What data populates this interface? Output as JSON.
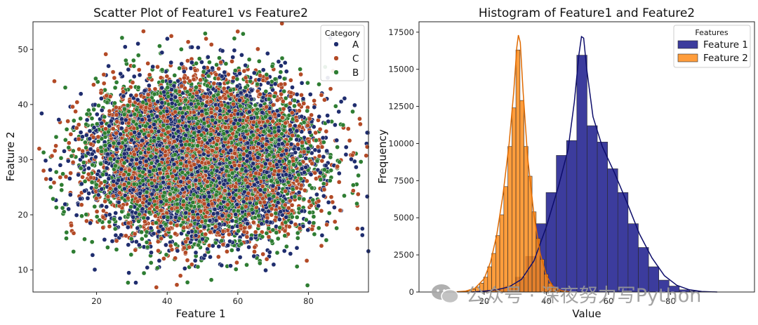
{
  "chart_data": [
    {
      "type": "scatter",
      "title": "Scatter Plot of Feature1 vs Feature2",
      "xlabel": "Feature 1",
      "ylabel": "Feature 2",
      "xlim": [
        2,
        97
      ],
      "ylim": [
        6,
        55
      ],
      "xticks": [
        "20",
        "40",
        "60",
        "80"
      ],
      "yticks": [
        "10",
        "20",
        "30",
        "40",
        "50"
      ],
      "grid": false,
      "legend": {
        "title": "Category",
        "placement": "top-right",
        "entries": [
          {
            "name": "A",
            "color": "#1f2d6e"
          },
          {
            "name": "C",
            "color": "#b34a26"
          },
          {
            "name": "B",
            "color": "#2e7d32"
          }
        ]
      },
      "distribution": {
        "x_mean": 50,
        "x_sd": 15,
        "y_mean": 30,
        "y_sd": 7,
        "approx_points_per_category": 3300
      },
      "outliers": [
        {
          "x": 61.5,
          "y": 52.8,
          "category": "B"
        },
        {
          "x": 94.5,
          "y": 37.4,
          "category": "C"
        },
        {
          "x": 5,
          "y": 31.3,
          "category": "B"
        },
        {
          "x": 5,
          "y": 28,
          "category": "C"
        },
        {
          "x": 7,
          "y": 25,
          "category": "B"
        },
        {
          "x": 11.5,
          "y": 16.8,
          "category": "B"
        },
        {
          "x": 89,
          "y": 20.8,
          "category": "C"
        },
        {
          "x": 52.5,
          "y": 8.2,
          "category": "B"
        },
        {
          "x": 44,
          "y": 50,
          "category": "B"
        }
      ]
    },
    {
      "type": "bar",
      "title": "Histogram of Feature1 and Feature2",
      "xlabel": "Value",
      "ylabel": "Frequency",
      "xlim": [
        -1,
        107
      ],
      "ylim": [
        0,
        18200
      ],
      "xticks": [
        "20",
        "40",
        "60",
        "80"
      ],
      "yticks": [
        "0",
        "2500",
        "5000",
        "7500",
        "10000",
        "12500",
        "15000",
        "17500"
      ],
      "grid": false,
      "legend": {
        "title": "Features",
        "placement": "top-right"
      },
      "series": [
        {
          "name": "Feature 1",
          "color": "#1a1a8c",
          "kde_color": "#0d0d6b",
          "bins": [
            {
              "x0": 16.8,
              "x1": 20.1,
              "count": 40
            },
            {
              "x0": 20.1,
              "x1": 23.4,
              "count": 100
            },
            {
              "x0": 23.4,
              "x1": 26.7,
              "count": 220
            },
            {
              "x0": 26.7,
              "x1": 30.0,
              "count": 400
            },
            {
              "x0": 30.0,
              "x1": 33.3,
              "count": 1000
            },
            {
              "x0": 33.3,
              "x1": 36.6,
              "count": 2400
            },
            {
              "x0": 36.6,
              "x1": 39.9,
              "count": 4600
            },
            {
              "x0": 39.9,
              "x1": 43.2,
              "count": 6700
            },
            {
              "x0": 43.2,
              "x1": 46.5,
              "count": 9200
            },
            {
              "x0": 46.5,
              "x1": 49.8,
              "count": 10200
            },
            {
              "x0": 49.8,
              "x1": 53.1,
              "count": 15950
            },
            {
              "x0": 53.1,
              "x1": 56.4,
              "count": 11200
            },
            {
              "x0": 56.4,
              "x1": 59.7,
              "count": 10100
            },
            {
              "x0": 59.7,
              "x1": 63.0,
              "count": 8300
            },
            {
              "x0": 63.0,
              "x1": 66.3,
              "count": 6700
            },
            {
              "x0": 66.3,
              "x1": 69.6,
              "count": 4600
            },
            {
              "x0": 69.6,
              "x1": 72.9,
              "count": 3000
            },
            {
              "x0": 72.9,
              "x1": 76.2,
              "count": 1700
            },
            {
              "x0": 76.2,
              "x1": 79.5,
              "count": 800
            },
            {
              "x0": 79.5,
              "x1": 82.8,
              "count": 400
            },
            {
              "x0": 82.8,
              "x1": 86.1,
              "count": 150
            },
            {
              "x0": 86.1,
              "x1": 89.4,
              "count": 60
            },
            {
              "x0": 89.4,
              "x1": 92.7,
              "count": 20
            }
          ],
          "kde": [
            [
              16,
              0
            ],
            [
              20,
              60
            ],
            [
              24,
              150
            ],
            [
              28,
              350
            ],
            [
              32,
              850
            ],
            [
              36,
              2100
            ],
            [
              40,
              4400
            ],
            [
              44,
              7200
            ],
            [
              47,
              9600
            ],
            [
              49,
              12800
            ],
            [
              50.5,
              16000
            ],
            [
              51.3,
              17200
            ],
            [
              52,
              17100
            ],
            [
              53,
              15000
            ],
            [
              55,
              11800
            ],
            [
              58,
              9800
            ],
            [
              62,
              8000
            ],
            [
              66,
              6000
            ],
            [
              70,
              3900
            ],
            [
              74,
              2300
            ],
            [
              78,
              1100
            ],
            [
              82,
              450
            ],
            [
              86,
              150
            ],
            [
              90,
              40
            ],
            [
              95,
              0
            ]
          ]
        },
        {
          "name": "Feature 2",
          "color": "#ff8c1a",
          "kde_color": "#e06a00",
          "bins": [
            {
              "x0": 12.0,
              "x1": 13.3,
              "count": 20
            },
            {
              "x0": 13.3,
              "x1": 14.6,
              "count": 50
            },
            {
              "x0": 14.6,
              "x1": 15.9,
              "count": 100
            },
            {
              "x0": 15.9,
              "x1": 17.2,
              "count": 180
            },
            {
              "x0": 17.2,
              "x1": 18.5,
              "count": 330
            },
            {
              "x0": 18.5,
              "x1": 19.8,
              "count": 600
            },
            {
              "x0": 19.8,
              "x1": 21.1,
              "count": 1000
            },
            {
              "x0": 21.1,
              "x1": 22.4,
              "count": 1700
            },
            {
              "x0": 22.4,
              "x1": 23.7,
              "count": 2600
            },
            {
              "x0": 23.7,
              "x1": 25.0,
              "count": 3800
            },
            {
              "x0": 25.0,
              "x1": 26.3,
              "count": 5200
            },
            {
              "x0": 26.3,
              "x1": 27.6,
              "count": 7100
            },
            {
              "x0": 27.6,
              "x1": 28.9,
              "count": 9800
            },
            {
              "x0": 28.9,
              "x1": 30.2,
              "count": 12400
            },
            {
              "x0": 30.2,
              "x1": 31.5,
              "count": 16300
            },
            {
              "x0": 31.5,
              "x1": 32.8,
              "count": 12900
            },
            {
              "x0": 32.8,
              "x1": 34.1,
              "count": 9800
            },
            {
              "x0": 34.1,
              "x1": 35.4,
              "count": 7800
            },
            {
              "x0": 35.4,
              "x1": 36.7,
              "count": 5400
            },
            {
              "x0": 36.7,
              "x1": 38.0,
              "count": 3600
            },
            {
              "x0": 38.0,
              "x1": 39.3,
              "count": 2200
            },
            {
              "x0": 39.3,
              "x1": 40.6,
              "count": 1200
            },
            {
              "x0": 40.6,
              "x1": 41.9,
              "count": 600
            },
            {
              "x0": 41.9,
              "x1": 43.2,
              "count": 280
            },
            {
              "x0": 43.2,
              "x1": 44.5,
              "count": 120
            },
            {
              "x0": 44.5,
              "x1": 45.8,
              "count": 50
            }
          ],
          "kde": [
            [
              10,
              0
            ],
            [
              14,
              60
            ],
            [
              17,
              250
            ],
            [
              20,
              900
            ],
            [
              22,
              2000
            ],
            [
              24,
              3800
            ],
            [
              26,
              6500
            ],
            [
              28,
              10000
            ],
            [
              29.5,
              13500
            ],
            [
              30.5,
              16500
            ],
            [
              31,
              17300
            ],
            [
              31.6,
              16800
            ],
            [
              32.5,
              13500
            ],
            [
              34,
              9000
            ],
            [
              36,
              5200
            ],
            [
              38,
              2600
            ],
            [
              40,
              1100
            ],
            [
              42,
              400
            ],
            [
              45,
              80
            ],
            [
              48,
              0
            ]
          ]
        }
      ]
    }
  ],
  "watermark": {
    "text": "公众号 · 深夜努力写Python"
  }
}
